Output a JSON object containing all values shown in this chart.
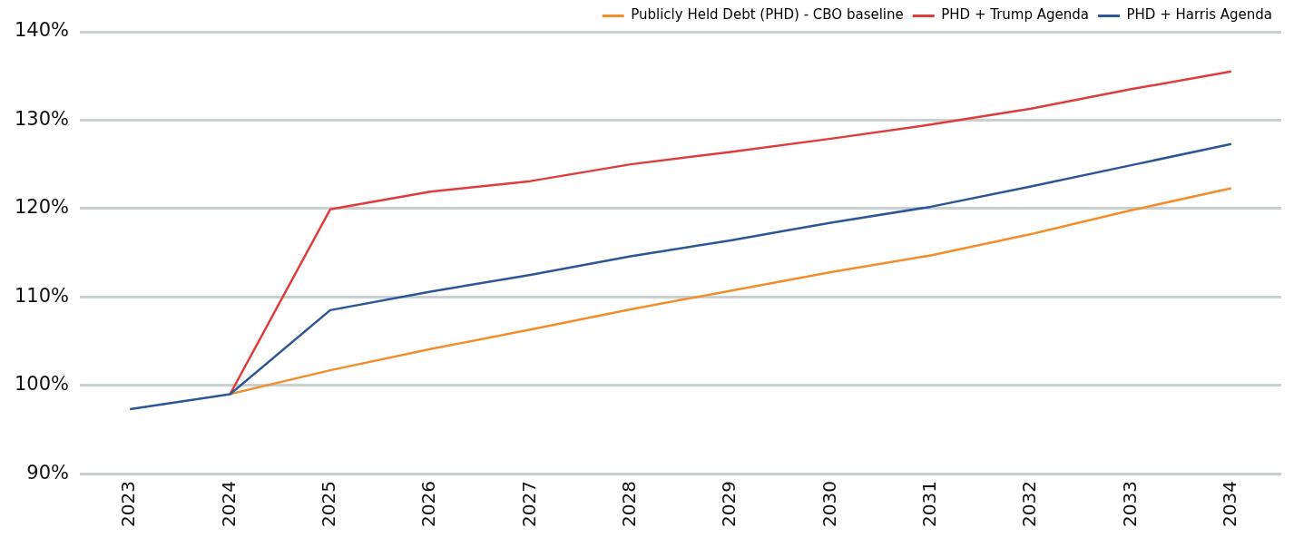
{
  "chart_data": {
    "type": "line",
    "categories": [
      "2023",
      "2024",
      "2025",
      "2026",
      "2027",
      "2028",
      "2029",
      "2030",
      "2031",
      "2032",
      "2033",
      "2034"
    ],
    "series": [
      {
        "name": "Publicly Held Debt (PHD) - CBO baseline",
        "color": "#f28e2b",
        "values": [
          null,
          99.0,
          101.7,
          104.1,
          106.3,
          108.6,
          110.7,
          112.8,
          114.7,
          117.1,
          119.8,
          122.3
        ]
      },
      {
        "name": "PHD + Trump Agenda",
        "color": "#e03c3c",
        "values": [
          null,
          99.0,
          119.9,
          121.9,
          123.1,
          125.0,
          126.4,
          127.9,
          129.5,
          131.3,
          133.5,
          135.5
        ]
      },
      {
        "name": "PHD + Harris Agenda",
        "color": "#2b5797",
        "values": [
          97.3,
          99.0,
          108.5,
          110.6,
          112.5,
          114.6,
          116.4,
          118.4,
          120.2,
          122.5,
          124.9,
          127.3
        ]
      }
    ],
    "ylim": [
      90,
      140
    ],
    "yticks": [
      {
        "value": 90,
        "label": "90%"
      },
      {
        "value": 100,
        "label": "100%"
      },
      {
        "value": 110,
        "label": "110%"
      },
      {
        "value": 120,
        "label": "120%"
      },
      {
        "value": 130,
        "label": "130%"
      },
      {
        "value": 140,
        "label": "140%"
      }
    ],
    "grid": "y",
    "legend": "top right",
    "marker": "none",
    "line_style": "solid"
  }
}
